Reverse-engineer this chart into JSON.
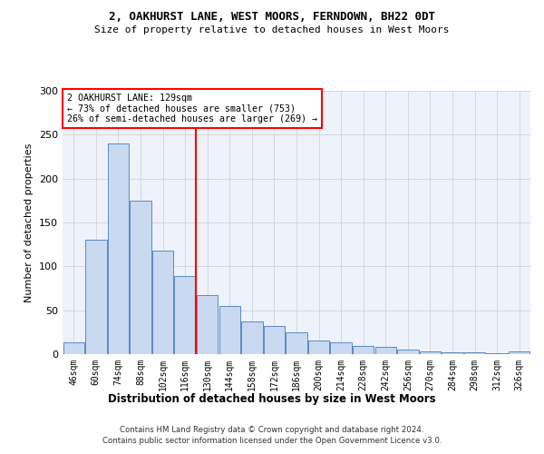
{
  "title1": "2, OAKHURST LANE, WEST MOORS, FERNDOWN, BH22 0DT",
  "title2": "Size of property relative to detached houses in West Moors",
  "xlabel": "Distribution of detached houses by size in West Moors",
  "ylabel": "Number of detached properties",
  "bar_labels": [
    "46sqm",
    "60sqm",
    "74sqm",
    "88sqm",
    "102sqm",
    "116sqm",
    "130sqm",
    "144sqm",
    "158sqm",
    "172sqm",
    "186sqm",
    "200sqm",
    "214sqm",
    "228sqm",
    "242sqm",
    "256sqm",
    "270sqm",
    "284sqm",
    "298sqm",
    "312sqm",
    "326sqm"
  ],
  "bar_values": [
    13,
    130,
    240,
    175,
    118,
    89,
    67,
    55,
    37,
    32,
    25,
    16,
    13,
    9,
    8,
    5,
    3,
    2,
    2,
    1,
    3
  ],
  "bar_color": "#c9d9f0",
  "bar_edge_color": "#5b8ac5",
  "vline_x": 5.5,
  "vline_color": "red",
  "annotation_text": "2 OAKHURST LANE: 129sqm\n← 73% of detached houses are smaller (753)\n26% of semi-detached houses are larger (269) →",
  "annotation_box_color": "white",
  "annotation_box_edge_color": "red",
  "ylim": [
    0,
    300
  ],
  "yticks": [
    0,
    50,
    100,
    150,
    200,
    250,
    300
  ],
  "footer1": "Contains HM Land Registry data © Crown copyright and database right 2024.",
  "footer2": "Contains public sector information licensed under the Open Government Licence v3.0.",
  "bg_color": "white",
  "grid_color": "#cccccc",
  "axes_bg_color": "#eef2fb"
}
